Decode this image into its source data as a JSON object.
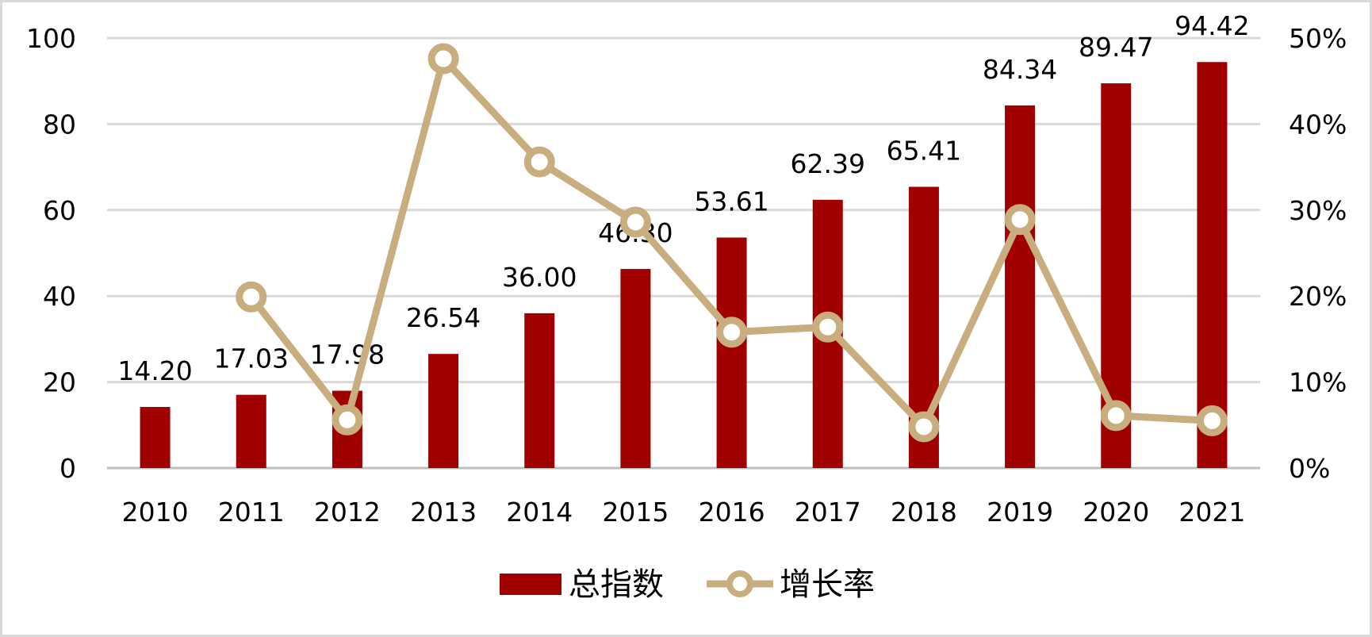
{
  "chart_data": {
    "type": "bar",
    "categories": [
      "2010",
      "2011",
      "2012",
      "2013",
      "2014",
      "2015",
      "2016",
      "2017",
      "2018",
      "2019",
      "2020",
      "2021"
    ],
    "series": [
      {
        "name": "总指数",
        "type": "bar",
        "axis": "left",
        "values": [
          14.2,
          17.03,
          17.98,
          26.54,
          36.0,
          46.3,
          53.61,
          62.39,
          65.41,
          84.34,
          89.47,
          94.42
        ],
        "labels": [
          "14.20",
          "17.03",
          "17.98",
          "26.54",
          "36.00",
          "46.30",
          "53.61",
          "62.39",
          "65.41",
          "84.34",
          "89.47",
          "94.42"
        ],
        "color": "#a00000"
      },
      {
        "name": "增长率",
        "type": "line",
        "axis": "right",
        "values": [
          null,
          19.9,
          5.6,
          47.6,
          35.6,
          28.6,
          15.8,
          16.4,
          4.8,
          28.9,
          6.1,
          5.5
        ],
        "color": "#c8ad7f"
      }
    ],
    "y_left": {
      "ylim": [
        0,
        100
      ],
      "ticks": [
        "0",
        "20",
        "40",
        "60",
        "80",
        "100"
      ]
    },
    "y_right": {
      "ylim": [
        0,
        50
      ],
      "ticks": [
        "0%",
        "10%",
        "20%",
        "30%",
        "40%",
        "50%"
      ]
    },
    "grid": true,
    "legend": "bottom-center"
  }
}
